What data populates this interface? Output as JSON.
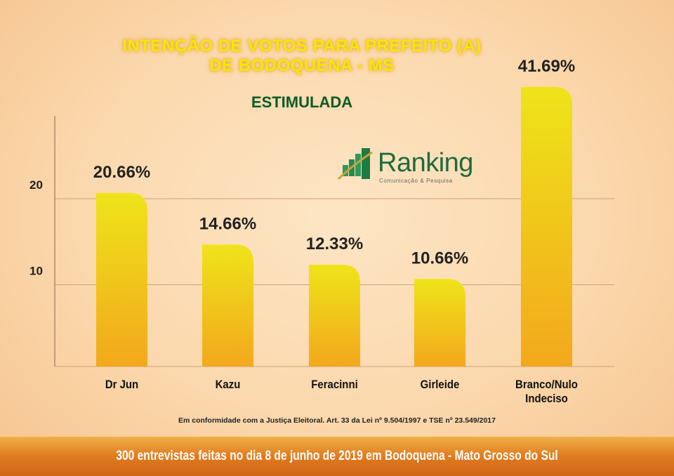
{
  "header": {
    "title_line1": "INTENÇÃO DE VOTOS PARA PREFEITO (A)",
    "title_line2": "DE BODOQUENA - MS",
    "subtitle": "ESTIMULADA"
  },
  "logo": {
    "name": "Ranking",
    "tagline": "Comunicação & Pesquisa"
  },
  "footer": {
    "legal_note": "Em conformidade com a Justiça Eleitoral. Art. 33 da Lei nº 9.504/1997 e TSE nº 23.549/2017",
    "banner": "300 entrevistas feitas no dia 8 de junho de 2019 em Bodoquena - Mato Grosso do Sul"
  },
  "chart_data": {
    "type": "bar",
    "title": "INTENÇÃO DE VOTOS PARA PREFEITO (A) DE BODOQUENA - MS",
    "subtitle": "ESTIMULADA",
    "categories": [
      "Dr Jun",
      "Kazu",
      "Feracinni",
      "Girleide",
      "Branco/Nulo Indeciso"
    ],
    "values": [
      20.66,
      14.66,
      12.33,
      10.66,
      41.69
    ],
    "data_labels": [
      "20.66%",
      "14.66%",
      "12.33%",
      "10.66%",
      "41.69%"
    ],
    "yticks": [
      10,
      20
    ],
    "ylim": [
      0,
      33
    ],
    "grid": true,
    "colors": {
      "bar_top": "#eee41a",
      "bar_bottom": "#f3a81c",
      "grid": "#c9a37a"
    }
  }
}
